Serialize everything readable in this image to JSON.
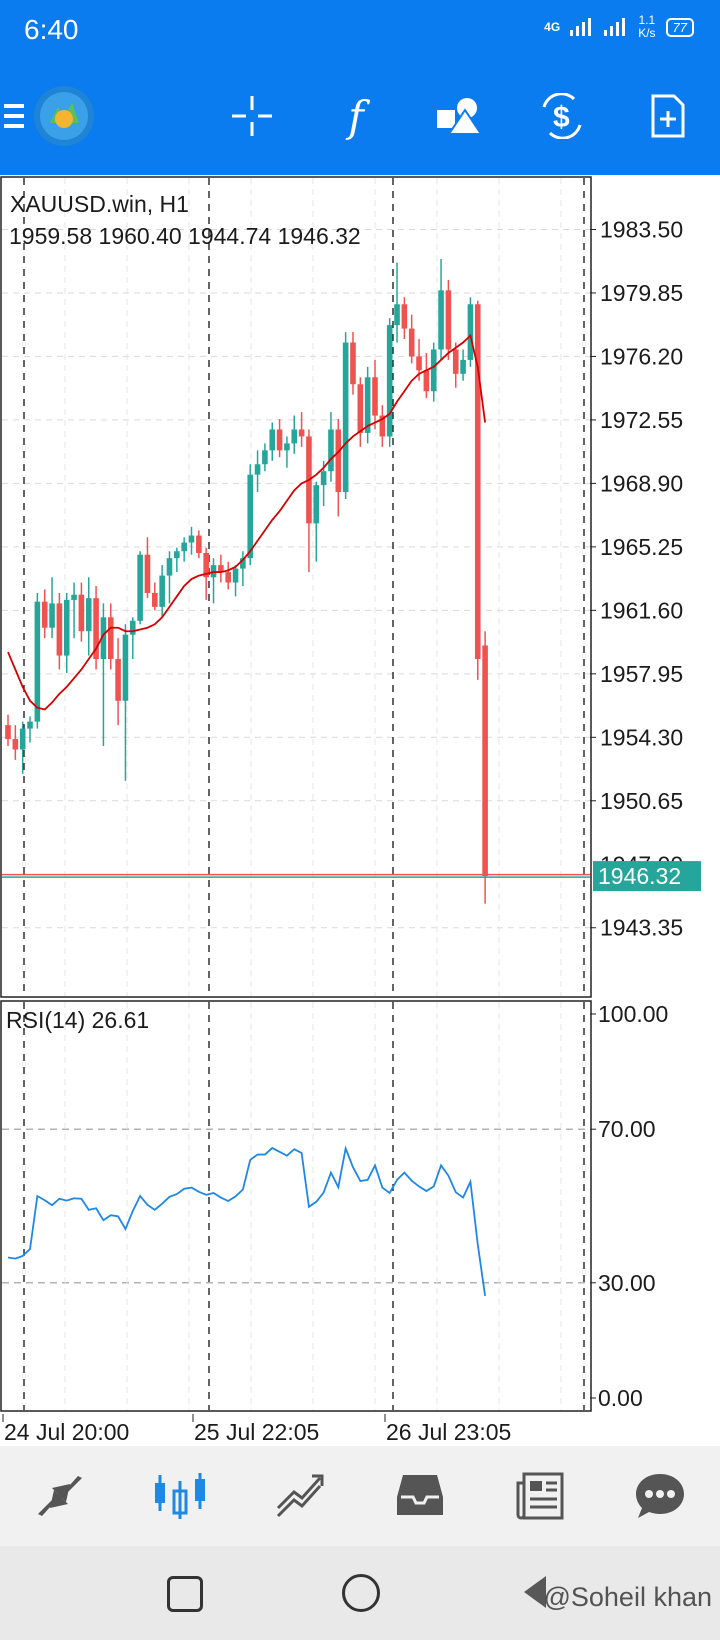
{
  "status_bar": {
    "time": "6:40",
    "network": "4G",
    "speed_value": "1.1",
    "speed_unit": "K/s",
    "battery": "77"
  },
  "toolbar": {
    "icons": [
      "menu-icon",
      "app-logo-icon",
      "crosshair-icon",
      "indicators-icon",
      "objects-icon",
      "trade-icon",
      "new-order-icon"
    ]
  },
  "chart": {
    "symbol_label": "XAUUSD.win, H1",
    "ohlc_label": "1959.58 1960.40 1944.74 1946.32",
    "current_price": "1946.32",
    "hidden_tick": "1947.00"
  },
  "rsi": {
    "label": "RSI(14) 26.61"
  },
  "x_axis": {
    "labels": [
      "24 Jul 20:00",
      "25 Jul 22:05",
      "26 Jul 23:05"
    ]
  },
  "bottom_nav": {
    "items": [
      "quotes-icon",
      "chart-icon",
      "trade-icon",
      "history-icon",
      "news-icon",
      "messages-icon"
    ],
    "active": "chart-icon"
  },
  "watermark": "@Soheil khan",
  "colors": {
    "accent": "#0a7cf0",
    "bull": "#26a69a",
    "bear": "#ef5350",
    "ma": "#d50000",
    "rsi": "#1e88e5"
  },
  "chart_data": [
    {
      "type": "candlestick",
      "title": "XAUUSD.win, H1",
      "ylim": [
        1940.0,
        1986.0
      ],
      "y_ticks": [
        "1983.50",
        "1979.85",
        "1976.20",
        "1972.55",
        "1968.90",
        "1965.25",
        "1961.60",
        "1957.95",
        "1954.30",
        "1950.65",
        "1943.35"
      ],
      "ohlc": [
        [
          1955.0,
          1955.6,
          1953.8,
          1954.2
        ],
        [
          1954.2,
          1955.0,
          1953.0,
          1953.6
        ],
        [
          1953.6,
          1955.2,
          1952.2,
          1954.8
        ],
        [
          1954.8,
          1955.5,
          1954.0,
          1955.2
        ],
        [
          1955.2,
          1962.6,
          1954.8,
          1962.1
        ],
        [
          1962.1,
          1962.8,
          1960.0,
          1960.6
        ],
        [
          1960.6,
          1963.5,
          1960.0,
          1962.0
        ],
        [
          1962.0,
          1962.6,
          1958.2,
          1959.0
        ],
        [
          1959.0,
          1962.6,
          1958.0,
          1962.2
        ],
        [
          1962.2,
          1963.2,
          1960.0,
          1962.5
        ],
        [
          1962.5,
          1963.2,
          1959.8,
          1960.4
        ],
        [
          1960.4,
          1963.5,
          1959.0,
          1962.3
        ],
        [
          1962.3,
          1963.0,
          1958.2,
          1958.8
        ],
        [
          1958.8,
          1962.0,
          1953.8,
          1961.2
        ],
        [
          1961.2,
          1962.0,
          1958.2,
          1958.8
        ],
        [
          1958.8,
          1960.0,
          1955.0,
          1956.4
        ],
        [
          1956.4,
          1960.8,
          1951.8,
          1960.2
        ],
        [
          1960.2,
          1961.2,
          1958.8,
          1961.0
        ],
        [
          1961.0,
          1965.0,
          1960.8,
          1964.8
        ],
        [
          1964.8,
          1965.8,
          1962.3,
          1962.6
        ],
        [
          1962.6,
          1963.2,
          1961.6,
          1961.8
        ],
        [
          1961.8,
          1964.2,
          1961.2,
          1963.6
        ],
        [
          1963.6,
          1965.0,
          1962.0,
          1964.6
        ],
        [
          1964.6,
          1965.2,
          1963.8,
          1965.0
        ],
        [
          1965.0,
          1965.8,
          1964.4,
          1965.5
        ],
        [
          1965.5,
          1966.4,
          1964.8,
          1965.9
        ],
        [
          1965.9,
          1966.2,
          1964.6,
          1964.9
        ],
        [
          1964.9,
          1965.2,
          1962.2,
          1963.5
        ],
        [
          1963.5,
          1964.6,
          1962.0,
          1964.2
        ],
        [
          1964.2,
          1964.8,
          1963.2,
          1963.8
        ],
        [
          1963.8,
          1964.4,
          1962.8,
          1963.2
        ],
        [
          1963.2,
          1964.2,
          1962.4,
          1964.0
        ],
        [
          1964.0,
          1965.0,
          1963.0,
          1964.6
        ],
        [
          1964.6,
          1970.0,
          1964.2,
          1969.4
        ],
        [
          1969.4,
          1970.8,
          1968.4,
          1970.0
        ],
        [
          1970.0,
          1971.2,
          1969.6,
          1970.8
        ],
        [
          1970.8,
          1972.4,
          1970.2,
          1972.0
        ],
        [
          1972.0,
          1972.6,
          1970.4,
          1970.8
        ],
        [
          1970.8,
          1971.6,
          1969.8,
          1971.2
        ],
        [
          1971.2,
          1972.8,
          1970.6,
          1972.0
        ],
        [
          1972.0,
          1973.0,
          1971.0,
          1971.6
        ],
        [
          1971.6,
          1972.0,
          1963.8,
          1966.6
        ],
        [
          1966.6,
          1969.0,
          1964.4,
          1968.8
        ],
        [
          1968.8,
          1970.2,
          1967.6,
          1969.6
        ],
        [
          1969.6,
          1973.0,
          1969.0,
          1972.0
        ],
        [
          1972.0,
          1972.6,
          1967.0,
          1968.4
        ],
        [
          1968.4,
          1977.6,
          1968.0,
          1977.0
        ],
        [
          1977.0,
          1977.6,
          1974.0,
          1974.6
        ],
        [
          1974.6,
          1975.0,
          1971.0,
          1971.8
        ],
        [
          1971.8,
          1975.6,
          1971.2,
          1975.0
        ],
        [
          1975.0,
          1976.0,
          1972.0,
          1972.8
        ],
        [
          1972.8,
          1973.4,
          1971.0,
          1971.6
        ],
        [
          1971.6,
          1978.4,
          1971.0,
          1978.0
        ],
        [
          1978.0,
          1981.6,
          1977.0,
          1979.2
        ],
        [
          1979.2,
          1979.6,
          1977.2,
          1977.8
        ],
        [
          1977.8,
          1978.6,
          1975.8,
          1976.2
        ],
        [
          1976.2,
          1977.2,
          1974.8,
          1975.4
        ],
        [
          1975.4,
          1976.4,
          1973.8,
          1974.2
        ],
        [
          1974.2,
          1977.0,
          1973.6,
          1976.6
        ],
        [
          1976.6,
          1981.8,
          1976.0,
          1980.0
        ],
        [
          1980.0,
          1980.6,
          1976.0,
          1976.6
        ],
        [
          1976.6,
          1977.0,
          1974.4,
          1975.2
        ],
        [
          1975.2,
          1976.6,
          1974.8,
          1976.0
        ],
        [
          1976.0,
          1979.6,
          1975.6,
          1979.2
        ],
        [
          1979.2,
          1979.4,
          1957.6,
          1958.8
        ],
        [
          1959.58,
          1960.4,
          1944.74,
          1946.32
        ]
      ],
      "ma_values": [
        1959.2,
        1958.2,
        1957.2,
        1956.4,
        1956.0,
        1955.9,
        1956.3,
        1956.8,
        1957.2,
        1957.7,
        1958.2,
        1958.8,
        1959.4,
        1960.2,
        1960.6,
        1960.6,
        1960.4,
        1960.4,
        1960.5,
        1960.6,
        1960.8,
        1961.2,
        1961.8,
        1962.4,
        1963.0,
        1963.4,
        1963.6,
        1963.7,
        1963.8,
        1963.8,
        1963.9,
        1964.1,
        1964.5,
        1965.0,
        1965.6,
        1966.2,
        1966.8,
        1967.3,
        1967.9,
        1968.5,
        1968.9,
        1969.1,
        1969.4,
        1969.8,
        1970.3,
        1970.7,
        1971.2,
        1971.6,
        1971.9,
        1972.2,
        1972.4,
        1972.6,
        1972.9,
        1973.6,
        1974.2,
        1974.8,
        1975.2,
        1975.4,
        1975.6,
        1976.0,
        1976.4,
        1976.7,
        1977.0,
        1977.4,
        1975.6,
        1972.4
      ],
      "x_tick_indices": [
        0,
        22,
        44
      ]
    },
    {
      "type": "line",
      "title": "RSI(14) 26.61",
      "ylim": [
        0,
        100
      ],
      "y_ticks": [
        "100.00",
        "70.00",
        "30.00",
        "0.00"
      ],
      "levels": [
        70,
        30
      ],
      "values": [
        36.6,
        36.3,
        37.0,
        38.8,
        52.6,
        51.5,
        50.2,
        51.9,
        51.4,
        52.0,
        51.9,
        49.0,
        49.4,
        46.3,
        47.6,
        47.3,
        44.0,
        48.7,
        52.6,
        50.3,
        49.0,
        50.6,
        52.4,
        53.1,
        54.5,
        54.8,
        53.7,
        52.9,
        53.4,
        52.2,
        51.3,
        52.5,
        54.3,
        62.0,
        63.4,
        63.4,
        65.1,
        64.1,
        63.1,
        64.8,
        63.8,
        49.8,
        51.1,
        53.5,
        58.7,
        54.9,
        65.0,
        60.1,
        56.5,
        56.8,
        60.6,
        54.8,
        53.4,
        56.8,
        58.7,
        56.6,
        55.1,
        53.9,
        55.1,
        60.6,
        57.9,
        53.6,
        52.2,
        56.3,
        40.0,
        26.61
      ]
    }
  ]
}
